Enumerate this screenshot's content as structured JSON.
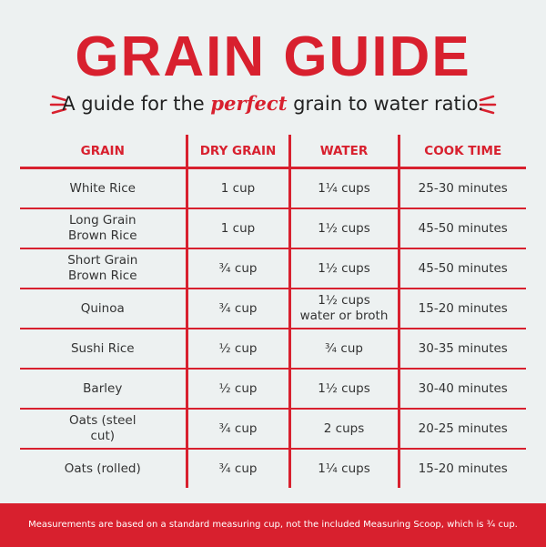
{
  "header": {
    "title": "GRAIN GUIDE",
    "subtitle": {
      "before": "A guide for the",
      "emphasis": "perfect",
      "after": "grain to water ratio."
    }
  },
  "table": {
    "columns": [
      "GRAIN",
      "DRY GRAIN",
      "WATER",
      "COOK TIME"
    ],
    "rows": [
      [
        "White Rice",
        "1 cup",
        "1¼ cups",
        "25-30 minutes"
      ],
      [
        "Long Grain Brown Rice",
        "1 cup",
        "1½ cups",
        "45-50 minutes"
      ],
      [
        "Short Grain Brown Rice",
        "¾ cup",
        "1½ cups",
        "45-50 minutes"
      ],
      [
        "Quinoa",
        "¾ cup",
        "1½ cups water or broth",
        "15-20 minutes"
      ],
      [
        "Sushi Rice",
        "½ cup",
        "¾ cup",
        "30-35 minutes"
      ],
      [
        "Barley",
        "½ cup",
        "1½ cups",
        "30-40 minutes"
      ],
      [
        "Oats (steel cut)",
        "¾ cup",
        "2 cups",
        "20-25 minutes"
      ],
      [
        "Oats (rolled)",
        "¾ cup",
        "1¼ cups",
        "15-20 minutes"
      ]
    ]
  },
  "footer": {
    "note": "Measurements are based on a standard measuring cup, not the included Measuring Scoop, which is ¾ cup."
  }
}
